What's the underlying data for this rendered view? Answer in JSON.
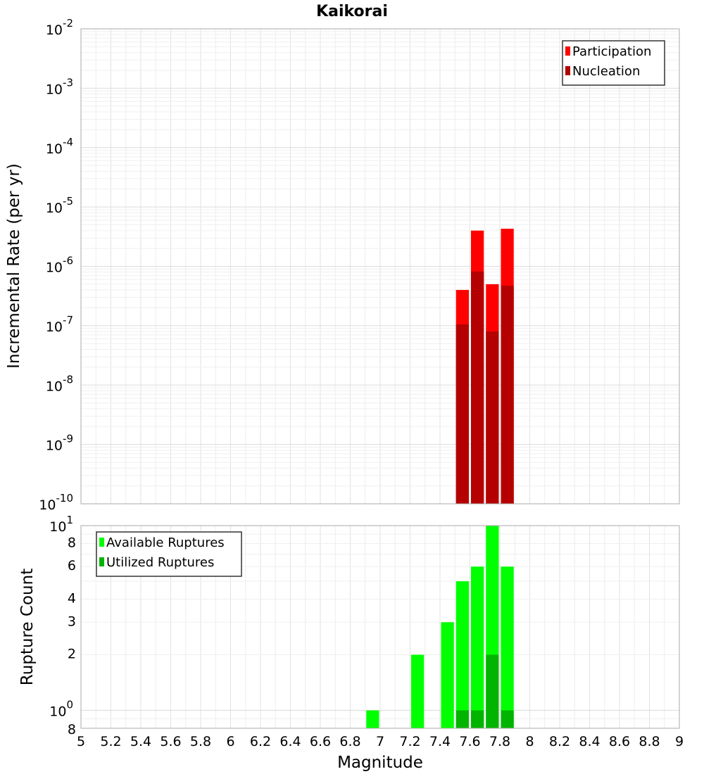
{
  "chart_data": {
    "title": "Kaikorai",
    "xlabel": "Magnitude",
    "xlim": [
      5,
      9
    ],
    "x_ticks": [
      "5",
      "5.2",
      "5.4",
      "5.6",
      "5.8",
      "6",
      "6.2",
      "6.4",
      "6.6",
      "6.8",
      "7",
      "7.2",
      "7.4",
      "7.6",
      "7.8",
      "8",
      "8.2",
      "8.4",
      "8.6",
      "8.8",
      "9"
    ],
    "bin_width": 0.1,
    "panels": [
      {
        "type": "bar",
        "yscale": "log",
        "ylabel": "Incremental Rate (per yr)",
        "ylim": [
          1e-10,
          0.01
        ],
        "y_ticks": [
          {
            "base": "10",
            "exp": "-2",
            "value": 0.01
          },
          {
            "base": "10",
            "exp": "-3",
            "value": 0.001
          },
          {
            "base": "10",
            "exp": "-4",
            "value": 0.0001
          },
          {
            "base": "10",
            "exp": "-5",
            "value": 1e-05
          },
          {
            "base": "10",
            "exp": "-6",
            "value": 1e-06
          },
          {
            "base": "10",
            "exp": "-7",
            "value": 1e-07
          },
          {
            "base": "10",
            "exp": "-8",
            "value": 1e-08
          },
          {
            "base": "10",
            "exp": "-9",
            "value": 1e-09
          },
          {
            "base": "10",
            "exp": "-10",
            "value": 1e-10
          }
        ],
        "legend": {
          "position": "top-right"
        },
        "series": [
          {
            "name": "Participation",
            "color": "#ff0000",
            "x": [
              7.55,
              7.65,
              7.75,
              7.85
            ],
            "values": [
              4e-07,
              4e-06,
              5e-07,
              4.3e-06
            ]
          },
          {
            "name": "Nucleation",
            "color": "#b40000",
            "x": [
              7.55,
              7.65,
              7.75,
              7.85
            ],
            "values": [
              1.05e-07,
              8.2e-07,
              8e-08,
              4.7e-07
            ]
          }
        ]
      },
      {
        "type": "bar",
        "yscale": "log",
        "ylabel": "Rupture Count",
        "ylim": [
          0.8,
          10
        ],
        "y_ticks": [
          {
            "base": "10",
            "exp": "1",
            "value": 10
          },
          {
            "base": "8",
            "exp": "",
            "value": 8
          },
          {
            "base": "6",
            "exp": "",
            "value": 6
          },
          {
            "base": "4",
            "exp": "",
            "value": 4
          },
          {
            "base": "3",
            "exp": "",
            "value": 3
          },
          {
            "base": "2",
            "exp": "",
            "value": 2
          },
          {
            "base": "10",
            "exp": "0",
            "value": 1
          },
          {
            "base": "8",
            "exp": "",
            "value": 0.8
          }
        ],
        "legend": {
          "position": "top-left"
        },
        "series": [
          {
            "name": "Available Ruptures",
            "color": "#00ff00",
            "x": [
              6.95,
              7.25,
              7.45,
              7.55,
              7.65,
              7.75,
              7.85
            ],
            "values": [
              1,
              2,
              3,
              5,
              6,
              10,
              6
            ]
          },
          {
            "name": "Utilized Ruptures",
            "color": "#00b400",
            "x": [
              7.55,
              7.65,
              7.75,
              7.85
            ],
            "values": [
              1,
              1,
              2,
              1
            ]
          }
        ]
      }
    ]
  }
}
